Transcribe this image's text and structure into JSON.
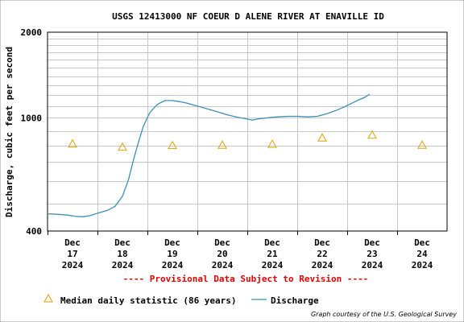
{
  "chart_data": {
    "type": "line",
    "title": "USGS 12413000 NF COEUR D ALENE RIVER AT ENAVILLE ID",
    "ylabel": "Discharge, cubic feet per second",
    "xlabel": "",
    "y_scale": "log",
    "ylim": [
      400,
      2000
    ],
    "y_tick_labels": [
      "2000",
      "1000",
      "400"
    ],
    "x_ticks": [
      {
        "label": [
          "Dec",
          "17",
          "2024"
        ]
      },
      {
        "label": [
          "Dec",
          "18",
          "2024"
        ]
      },
      {
        "label": [
          "Dec",
          "19",
          "2024"
        ]
      },
      {
        "label": [
          "Dec",
          "20",
          "2024"
        ]
      },
      {
        "label": [
          "Dec",
          "21",
          "2024"
        ]
      },
      {
        "label": [
          "Dec",
          "22",
          "2024"
        ]
      },
      {
        "label": [
          "Dec",
          "23",
          "2024"
        ]
      },
      {
        "label": [
          "Dec",
          "24",
          "2024"
        ]
      }
    ],
    "grid": true,
    "notice": "---- Provisional Data Subject to Revision ----",
    "credit": "Graph courtesy of the U.S. Geological Survey",
    "legend_placement": "bottom",
    "colors": {
      "discharge": "#3b8fb7",
      "median": "#e0a000",
      "notice": "#e00000"
    },
    "series": [
      {
        "name": "Discharge",
        "marker": "line",
        "points": [
          [
            0.0,
            460
          ],
          [
            0.2,
            458
          ],
          [
            0.4,
            455
          ],
          [
            0.55,
            451
          ],
          [
            0.7,
            449
          ],
          [
            0.85,
            453
          ],
          [
            1.0,
            462
          ],
          [
            1.2,
            473
          ],
          [
            1.35,
            488
          ],
          [
            1.5,
            530
          ],
          [
            1.62,
            605
          ],
          [
            1.72,
            710
          ],
          [
            1.82,
            820
          ],
          [
            1.92,
            935
          ],
          [
            2.05,
            1045
          ],
          [
            2.2,
            1115
          ],
          [
            2.35,
            1150
          ],
          [
            2.5,
            1150
          ],
          [
            2.65,
            1140
          ],
          [
            2.8,
            1125
          ],
          [
            3.0,
            1100
          ],
          [
            3.2,
            1075
          ],
          [
            3.4,
            1050
          ],
          [
            3.6,
            1025
          ],
          [
            3.8,
            1005
          ],
          [
            4.0,
            990
          ],
          [
            4.1,
            982
          ],
          [
            4.2,
            990
          ],
          [
            4.4,
            1000
          ],
          [
            4.6,
            1008
          ],
          [
            4.8,
            1012
          ],
          [
            5.0,
            1012
          ],
          [
            5.2,
            1008
          ],
          [
            5.4,
            1012
          ],
          [
            5.6,
            1035
          ],
          [
            5.8,
            1065
          ],
          [
            6.0,
            1105
          ],
          [
            6.2,
            1150
          ],
          [
            6.35,
            1180
          ],
          [
            6.45,
            1210
          ]
        ]
      },
      {
        "name": "Median daily statistic (86 years)",
        "marker": "triangle",
        "points": [
          [
            0.5,
            810
          ],
          [
            1.5,
            790
          ],
          [
            2.5,
            800
          ],
          [
            3.5,
            802
          ],
          [
            4.5,
            808
          ],
          [
            5.5,
            850
          ],
          [
            6.5,
            870
          ],
          [
            7.5,
            802
          ]
        ]
      }
    ]
  }
}
